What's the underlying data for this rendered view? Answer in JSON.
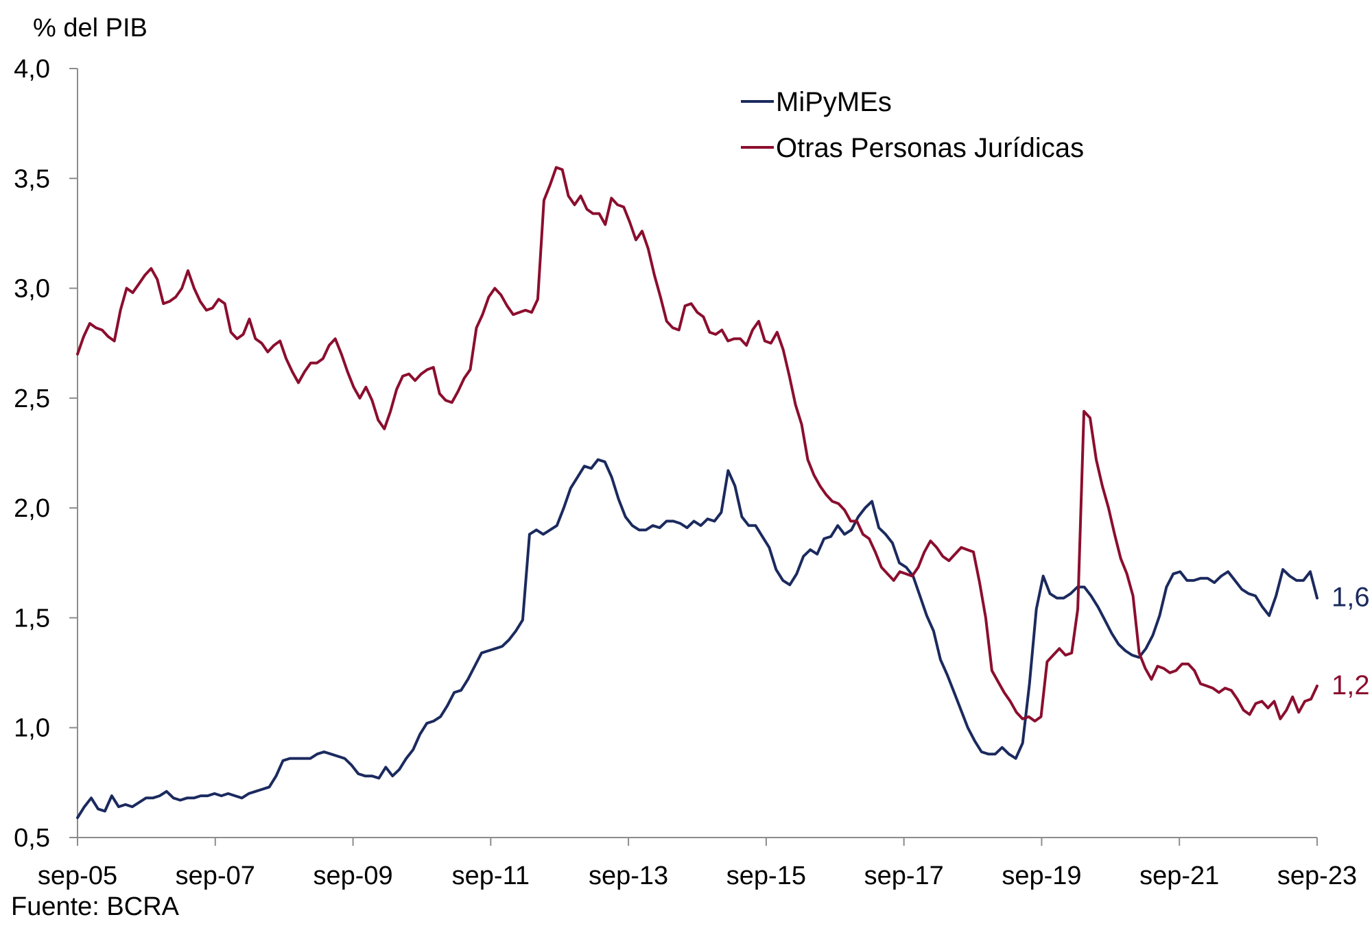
{
  "chart_data": {
    "type": "line",
    "ylabel": "% del PIB",
    "source": "Fuente: BCRA",
    "ylim": [
      0.5,
      4.0
    ],
    "yticks": [
      "0,5",
      "1,0",
      "1,5",
      "2,0",
      "2,5",
      "3,0",
      "3,5",
      "4,0"
    ],
    "ytick_values": [
      0.5,
      1.0,
      1.5,
      2.0,
      2.5,
      3.0,
      3.5,
      4.0
    ],
    "xticks": [
      "sep-05",
      "sep-07",
      "sep-09",
      "sep-11",
      "sep-13",
      "sep-15",
      "sep-17",
      "sep-19",
      "sep-21",
      "sep-23"
    ],
    "x_start": "sep-05",
    "x_end": "sep-23",
    "grid": false,
    "legend": "top-center",
    "series": [
      {
        "name": "MiPyMEs",
        "color": "#1b2a5e",
        "end_label": "1,6",
        "values": [
          0.59,
          0.64,
          0.68,
          0.63,
          0.62,
          0.69,
          0.64,
          0.65,
          0.64,
          0.66,
          0.68,
          0.68,
          0.69,
          0.71,
          0.68,
          0.67,
          0.68,
          0.68,
          0.69,
          0.69,
          0.7,
          0.69,
          0.7,
          0.69,
          0.68,
          0.7,
          0.71,
          0.72,
          0.73,
          0.78,
          0.85,
          0.86,
          0.86,
          0.86,
          0.86,
          0.88,
          0.89,
          0.88,
          0.87,
          0.86,
          0.83,
          0.79,
          0.78,
          0.78,
          0.77,
          0.82,
          0.78,
          0.81,
          0.86,
          0.9,
          0.97,
          1.02,
          1.03,
          1.05,
          1.1,
          1.16,
          1.17,
          1.22,
          1.28,
          1.34,
          1.35,
          1.36,
          1.37,
          1.4,
          1.44,
          1.49,
          1.88,
          1.9,
          1.88,
          1.9,
          1.92,
          2.0,
          2.09,
          2.14,
          2.19,
          2.18,
          2.22,
          2.21,
          2.14,
          2.04,
          1.96,
          1.92,
          1.9,
          1.9,
          1.92,
          1.91,
          1.94,
          1.94,
          1.93,
          1.91,
          1.94,
          1.92,
          1.95,
          1.94,
          1.98,
          2.17,
          2.1,
          1.96,
          1.92,
          1.92,
          1.87,
          1.82,
          1.72,
          1.67,
          1.65,
          1.7,
          1.78,
          1.81,
          1.79,
          1.86,
          1.87,
          1.92,
          1.88,
          1.9,
          1.96,
          2.0,
          2.03,
          1.91,
          1.88,
          1.84,
          1.75,
          1.73,
          1.69,
          1.6,
          1.51,
          1.44,
          1.31,
          1.24,
          1.16,
          1.08,
          1.0,
          0.94,
          0.89,
          0.88,
          0.88,
          0.91,
          0.88,
          0.86,
          0.93,
          1.2,
          1.54,
          1.69,
          1.61,
          1.59,
          1.59,
          1.61,
          1.64,
          1.64,
          1.6,
          1.55,
          1.49,
          1.43,
          1.38,
          1.35,
          1.33,
          1.32,
          1.36,
          1.42,
          1.51,
          1.64,
          1.7,
          1.71,
          1.67,
          1.67,
          1.68,
          1.68,
          1.66,
          1.69,
          1.71,
          1.67,
          1.63,
          1.61,
          1.6,
          1.55,
          1.51,
          1.6,
          1.72,
          1.69,
          1.67,
          1.67,
          1.71,
          1.59
        ]
      },
      {
        "name": "Otras Personas Jurídicas",
        "color": "#8b0e2e",
        "end_label": "1,2",
        "values": [
          2.7,
          2.78,
          2.84,
          2.82,
          2.81,
          2.78,
          2.76,
          2.9,
          3.0,
          2.98,
          3.02,
          3.06,
          3.09,
          3.04,
          2.93,
          2.94,
          2.96,
          3.0,
          3.08,
          3.0,
          2.94,
          2.9,
          2.91,
          2.95,
          2.93,
          2.8,
          2.77,
          2.79,
          2.86,
          2.77,
          2.75,
          2.71,
          2.74,
          2.76,
          2.68,
          2.62,
          2.57,
          2.62,
          2.66,
          2.66,
          2.68,
          2.74,
          2.77,
          2.7,
          2.62,
          2.55,
          2.5,
          2.55,
          2.49,
          2.4,
          2.36,
          2.44,
          2.54,
          2.6,
          2.61,
          2.58,
          2.61,
          2.63,
          2.64,
          2.52,
          2.49,
          2.48,
          2.53,
          2.59,
          2.63,
          2.82,
          2.88,
          2.96,
          3.0,
          2.97,
          2.92,
          2.88,
          2.89,
          2.9,
          2.89,
          2.95,
          3.4,
          3.47,
          3.55,
          3.54,
          3.42,
          3.38,
          3.42,
          3.36,
          3.34,
          3.34,
          3.29,
          3.41,
          3.38,
          3.37,
          3.3,
          3.22,
          3.26,
          3.18,
          3.06,
          2.96,
          2.85,
          2.82,
          2.81,
          2.92,
          2.93,
          2.89,
          2.87,
          2.8,
          2.79,
          2.81,
          2.76,
          2.77,
          2.77,
          2.74,
          2.81,
          2.85,
          2.76,
          2.75,
          2.8,
          2.72,
          2.6,
          2.47,
          2.38,
          2.22,
          2.15,
          2.1,
          2.06,
          2.03,
          2.02,
          1.99,
          1.94,
          1.94,
          1.88,
          1.86,
          1.8,
          1.73,
          1.7,
          1.67,
          1.71,
          1.7,
          1.69,
          1.73,
          1.8,
          1.85,
          1.82,
          1.78,
          1.76,
          1.79,
          1.82,
          1.81,
          1.8,
          1.66,
          1.5,
          1.26,
          1.21,
          1.16,
          1.12,
          1.07,
          1.04,
          1.05,
          1.03,
          1.05,
          1.3,
          1.33,
          1.36,
          1.33,
          1.34,
          1.54,
          2.44,
          2.41,
          2.22,
          2.1,
          2.0,
          1.88,
          1.77,
          1.7,
          1.6,
          1.34,
          1.27,
          1.22,
          1.28,
          1.27,
          1.25,
          1.26,
          1.29,
          1.29,
          1.26,
          1.2,
          1.19,
          1.18,
          1.16,
          1.18,
          1.17,
          1.13,
          1.08,
          1.06,
          1.11,
          1.12,
          1.09,
          1.12,
          1.04,
          1.08,
          1.14,
          1.07,
          1.12,
          1.13,
          1.19
        ]
      }
    ]
  }
}
